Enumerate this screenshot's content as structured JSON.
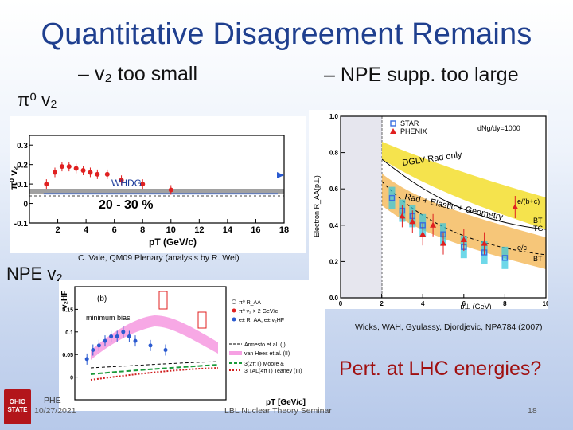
{
  "slide": {
    "title": "Quantitative Disagreement Remains",
    "bullet_v2": "– v₂ too small",
    "bullet_npe": "– NPE supp. too large",
    "label_pi0": "π⁰ v₂",
    "label_npe": "NPE v₂",
    "credit_vale": "C. Vale, QM09 Plenary (analysis by R. Wei)",
    "credit_wicks": "Wicks, WAH, Gyulassy, Djordjevic, NPA784 (2007)",
    "pert_lhc": "Pert. at LHC energies?",
    "footer_date": "10/27/2021",
    "footer_center": "LBL Nuclear Theory Seminar",
    "footer_page": "18",
    "footer_phe": "PHE",
    "logo_text": "OHIO STATE"
  },
  "colors": {
    "title": "#1f3f8f",
    "pert": "#a01010",
    "data_red": "#e02020",
    "theory_blue": "#2a5ad0",
    "band_gray": "#8a8a8a",
    "band_yellow": "#f4e03a",
    "band_orange": "#f0a020",
    "band_pink": "#f060d0",
    "star_blue": "#3a6ee0",
    "cyan": "#30c8e0"
  },
  "chart_data": [
    {
      "type": "scatter",
      "name": "pi0-v2",
      "xlabel": "pT (GeV/c)",
      "ylabel": "π⁰ v₂",
      "xlim": [
        0,
        18
      ],
      "ylim": [
        -0.1,
        0.35
      ],
      "xticks": [
        "2",
        "4",
        "6",
        "8",
        "10",
        "12",
        "14",
        "16",
        "18"
      ],
      "yticks": [
        "-0.1",
        "0",
        "0.1",
        "0.2",
        "0.3"
      ],
      "annotation_model": "WHDG",
      "annotation_centrality": "20 - 30 %",
      "data_x": [
        1.2,
        1.8,
        2.3,
        2.8,
        3.3,
        3.8,
        4.3,
        4.8,
        5.5,
        6.5,
        8.0,
        10.0
      ],
      "data_y": [
        0.1,
        0.16,
        0.19,
        0.19,
        0.18,
        0.17,
        0.16,
        0.15,
        0.15,
        0.12,
        0.1,
        0.07
      ],
      "whdg_x": [
        1,
        18
      ],
      "whdg_y": [
        0.05,
        0.05
      ]
    },
    {
      "type": "line",
      "name": "npe-raa",
      "xlabel": "p⊥ (GeV)",
      "ylabel": "Electron R_AA(p⊥)",
      "xlim": [
        0,
        10
      ],
      "ylim": [
        0,
        1
      ],
      "xticks": [
        "0",
        "2",
        "4",
        "6",
        "8",
        "10"
      ],
      "yticks": [
        "0.0",
        "0.2",
        "0.4",
        "0.6",
        "0.8",
        "1.0"
      ],
      "legend": [
        "STAR",
        "PHENIX",
        "dNg/dy=1000"
      ],
      "band_labels": [
        "DGLV Rad only",
        "Rad + Elastic + Geometry",
        "e/(b+c)",
        "BT",
        "TG",
        "e/c",
        "BT"
      ],
      "phenix_x": [
        3.0,
        3.5,
        4.0,
        4.5,
        5.0,
        6.0,
        7.0,
        8.5
      ],
      "phenix_y": [
        0.45,
        0.42,
        0.35,
        0.4,
        0.3,
        0.32,
        0.3,
        0.5
      ],
      "star_x": [
        2.5,
        3.0,
        3.5,
        4.0,
        5.0,
        6.0,
        7.0,
        8.0
      ],
      "star_y": [
        0.55,
        0.48,
        0.45,
        0.4,
        0.35,
        0.28,
        0.25,
        0.22
      ]
    },
    {
      "type": "scatter",
      "name": "npe-v2",
      "xlabel": "pT [GeV/c]",
      "ylabel": "v₂HF",
      "panel_label": "(b)",
      "tag": "minimum bias",
      "xlim": [
        0,
        5
      ],
      "ylim": [
        -0.05,
        0.2
      ],
      "yticks": [
        "0.15",
        "0.1",
        "0.05",
        "0"
      ],
      "legend": [
        "π⁰ R_AA",
        "π⁰ v₂ > 2 GeV/c",
        "e± R_AA, e± v₂HF",
        "Armesto et al. (I)",
        "van Hees et al. (II)",
        "3(2πT)  Moore &",
        "3 TAL(4πT)  Teaney (III)"
      ],
      "data_x": [
        0.4,
        0.6,
        0.8,
        1.0,
        1.2,
        1.4,
        1.6,
        1.8,
        2.0,
        2.5,
        3.0
      ],
      "data_y": [
        0.04,
        0.06,
        0.07,
        0.08,
        0.09,
        0.09,
        0.1,
        0.09,
        0.08,
        0.07,
        0.06
      ]
    }
  ]
}
